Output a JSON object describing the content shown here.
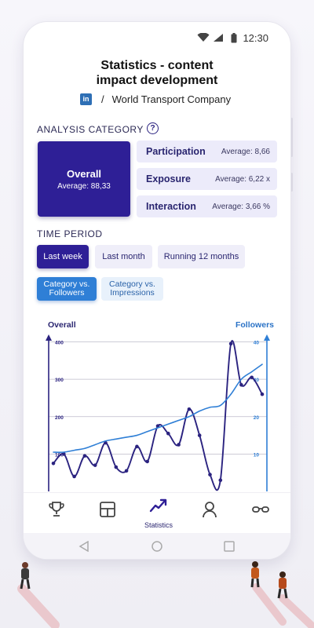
{
  "status_bar": {
    "time": "12:30"
  },
  "header": {
    "title_line1": "Statistics - content",
    "title_line2": "impact development",
    "company": "World Transport Company",
    "linkedin_logo": "in",
    "separator": "/"
  },
  "analysis": {
    "label": "ANALYSIS CATEGORY",
    "help": "?",
    "overall": {
      "title": "Overall",
      "average": "Average: 88,33"
    },
    "metrics": [
      {
        "title": "Participation",
        "average": "Average: 8,66"
      },
      {
        "title": "Exposure",
        "average": "Average: 6,22 x"
      },
      {
        "title": "Interaction",
        "average": "Average: 3,66 %"
      }
    ]
  },
  "time_period": {
    "label": "TIME PERIOD",
    "options": [
      "Last week",
      "Last month",
      "Running 12 months"
    ],
    "selected": "Last week"
  },
  "comparison": {
    "options": [
      {
        "line1": "Category vs.",
        "line2": "Followers"
      },
      {
        "line1": "Category vs.",
        "line2": "Impressions"
      }
    ],
    "selected": "Category vs. Followers"
  },
  "chart_data": {
    "type": "line",
    "left_axis_label": "Overall",
    "right_axis_label": "Followers",
    "left_ticks": [
      "100",
      "200",
      "300",
      "400"
    ],
    "right_ticks": [
      "10",
      "20",
      "30",
      "40"
    ],
    "ylim_left": [
      0,
      420
    ],
    "ylim_right": [
      0,
      42
    ],
    "series": [
      {
        "name": "Overall",
        "color": "#2b2380",
        "axis": "left",
        "values": [
          75,
          100,
          40,
          95,
          70,
          130,
          65,
          55,
          120,
          80,
          175,
          155,
          125,
          220,
          150,
          45,
          30,
          395,
          285,
          305,
          260
        ]
      },
      {
        "name": "Followers",
        "color": "#2f7fd6",
        "axis": "right",
        "values": [
          10.5,
          10.5,
          11,
          11.5,
          12.5,
          13.5,
          14,
          14.5,
          15,
          16,
          17,
          18,
          19,
          20,
          21.5,
          22.5,
          23,
          26,
          30,
          32,
          34
        ]
      }
    ],
    "grid": true
  },
  "bottom_nav": {
    "items": [
      {
        "icon": "trophy-icon",
        "label": ""
      },
      {
        "icon": "grid-icon",
        "label": ""
      },
      {
        "icon": "trend-icon",
        "label": "Statistics"
      },
      {
        "icon": "profile-icon",
        "label": ""
      },
      {
        "icon": "glasses-icon",
        "label": ""
      }
    ]
  },
  "colors": {
    "primary": "#2e1f96",
    "secondary": "#2f7fd6",
    "card_bg": "#ecebfa"
  }
}
